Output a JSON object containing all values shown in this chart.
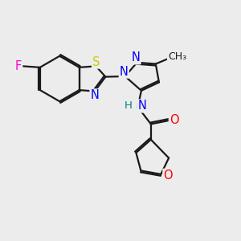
{
  "bg_color": "#ececec",
  "bond_color": "#1a1a1a",
  "bond_width": 1.6,
  "atom_colors": {
    "F": "#ff00dd",
    "S": "#cccc00",
    "N": "#0000ff",
    "O": "#ff0000",
    "H": "#008080",
    "C": "#1a1a1a"
  },
  "font_size": 9.5,
  "fig_size": [
    3.0,
    3.0
  ],
  "dpi": 100,
  "xlim": [
    0,
    10
  ],
  "ylim": [
    0,
    10
  ]
}
